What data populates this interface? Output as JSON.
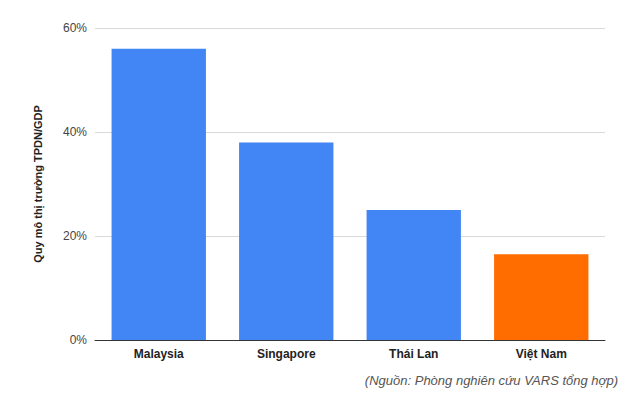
{
  "chart_data": {
    "type": "bar",
    "y_label": "Quy mô thị trường TPDN/GDP",
    "source": "(Nguồn: Phòng nghiên cứu VARS tổng hợp)",
    "categories": [
      "Malaysia",
      "Singapore",
      "Thái Lan",
      "Việt Nam"
    ],
    "values": [
      56,
      38,
      25,
      16.5
    ],
    "colors": [
      "#4285f4",
      "#4285f4",
      "#4285f4",
      "#ff6d01"
    ],
    "ylim": [
      0,
      60
    ],
    "yticks": [
      {
        "value": 0,
        "label": "0%"
      },
      {
        "value": 20,
        "label": "20%"
      },
      {
        "value": 40,
        "label": "40%"
      },
      {
        "value": 60,
        "label": "60%"
      }
    ],
    "grid": true
  }
}
